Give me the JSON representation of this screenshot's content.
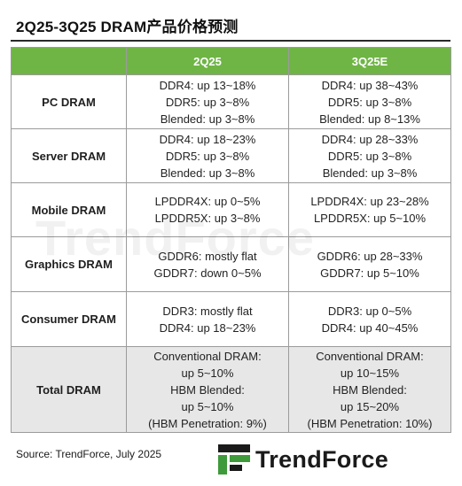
{
  "title": "2Q25-3Q25 DRAM产品价格预测",
  "table": {
    "columns": [
      "",
      "2Q25",
      "3Q25E"
    ],
    "rows": [
      {
        "category": "PC DRAM",
        "q2": [
          "DDR4: up 13~18%",
          "DDR5: up 3~8%",
          "Blended: up 3~8%"
        ],
        "q3": [
          "DDR4: up 38~43%",
          "DDR5: up 3~8%",
          "Blended: up 8~13%"
        ]
      },
      {
        "category": "Server DRAM",
        "q2": [
          "DDR4: up 18~23%",
          "DDR5: up 3~8%",
          "Blended: up 3~8%"
        ],
        "q3": [
          "DDR4: up 28~33%",
          "DDR5: up 3~8%",
          "Blended: up 3~8%"
        ]
      },
      {
        "category": "Mobile DRAM",
        "q2": [
          "LPDDR4X: up 0~5%",
          "LPDDR5X: up 3~8%"
        ],
        "q3": [
          "LPDDR4X: up 23~28%",
          "LPDDR5X: up 5~10%"
        ]
      },
      {
        "category": "Graphics DRAM",
        "q2": [
          "GDDR6: mostly flat",
          "GDDR7: down 0~5%"
        ],
        "q3": [
          "GDDR6: up 28~33%",
          "GDDR7: up 5~10%"
        ]
      },
      {
        "category": "Consumer DRAM",
        "q2": [
          "DDR3: mostly flat",
          "DDR4: up 18~23%"
        ],
        "q3": [
          "DDR3: up 0~5%",
          "DDR4: up 40~45%"
        ]
      },
      {
        "category": "Total DRAM",
        "q2": [
          "Conventional DRAM:",
          "up 5~10%",
          "HBM Blended:",
          "up 5~10%",
          "(HBM Penetration: 9%)"
        ],
        "q3": [
          "Conventional DRAM:",
          "up 10~15%",
          "HBM Blended:",
          "up 15~20%",
          "(HBM Penetration: 10%)"
        ]
      }
    ]
  },
  "watermark": "TrendForce",
  "source": "Source: TrendForce, July 2025",
  "brand": {
    "name": "TrendForce",
    "logo_icon": "trendforce-logo-icon"
  },
  "colors": {
    "header_green": "#6fb545",
    "total_row_gray": "#e7e7e7",
    "logo_green": "#3e9a3a",
    "logo_dark": "#1a1a1a"
  }
}
